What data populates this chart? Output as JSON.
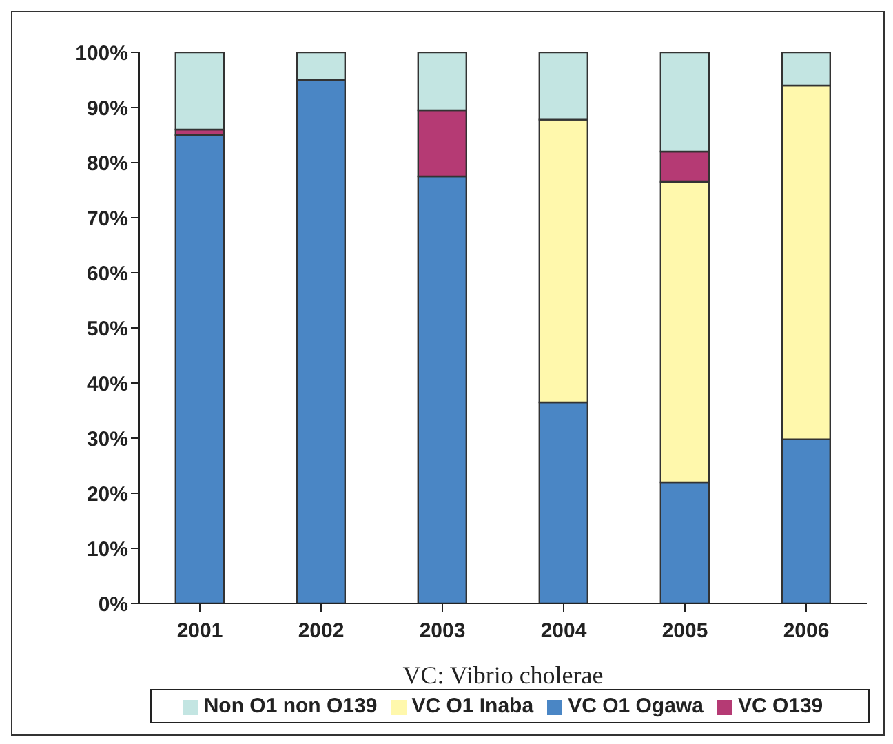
{
  "chart_data": {
    "type": "bar",
    "stacked": true,
    "xlabel": "VC: Vibrio cholerae",
    "categories": [
      "2001",
      "2002",
      "2003",
      "2004",
      "2005",
      "2006"
    ],
    "series": [
      {
        "name": "VC O1 Ogawa",
        "color": "#4a86c5",
        "values": [
          85,
          95,
          77.5,
          36.5,
          22,
          29.8
        ]
      },
      {
        "name": "VC O1 Inaba",
        "color": "#fff8ac",
        "values": [
          0,
          0,
          0,
          51.3,
          54.5,
          64.2
        ]
      },
      {
        "name": "VC O139",
        "color": "#b53a74",
        "values": [
          1,
          0,
          12,
          0,
          5.5,
          0
        ]
      },
      {
        "name": "Non O1 non O139",
        "color": "#c3e5e2",
        "values": [
          14,
          5,
          10.5,
          12.2,
          18,
          6
        ]
      }
    ],
    "ylim": [
      0,
      100
    ],
    "yticks": [
      {
        "value": 0,
        "label": "0%"
      },
      {
        "value": 10,
        "label": "10%"
      },
      {
        "value": 20,
        "label": "20%"
      },
      {
        "value": 30,
        "label": "30%"
      },
      {
        "value": 40,
        "label": "40%"
      },
      {
        "value": 50,
        "label": "50%"
      },
      {
        "value": 60,
        "label": "60%"
      },
      {
        "value": 70,
        "label": "70%"
      },
      {
        "value": 80,
        "label": "80%"
      },
      {
        "value": 90,
        "label": "90%"
      },
      {
        "value": 100,
        "label": "100%"
      }
    ],
    "grid": false,
    "legend": "bottom"
  }
}
